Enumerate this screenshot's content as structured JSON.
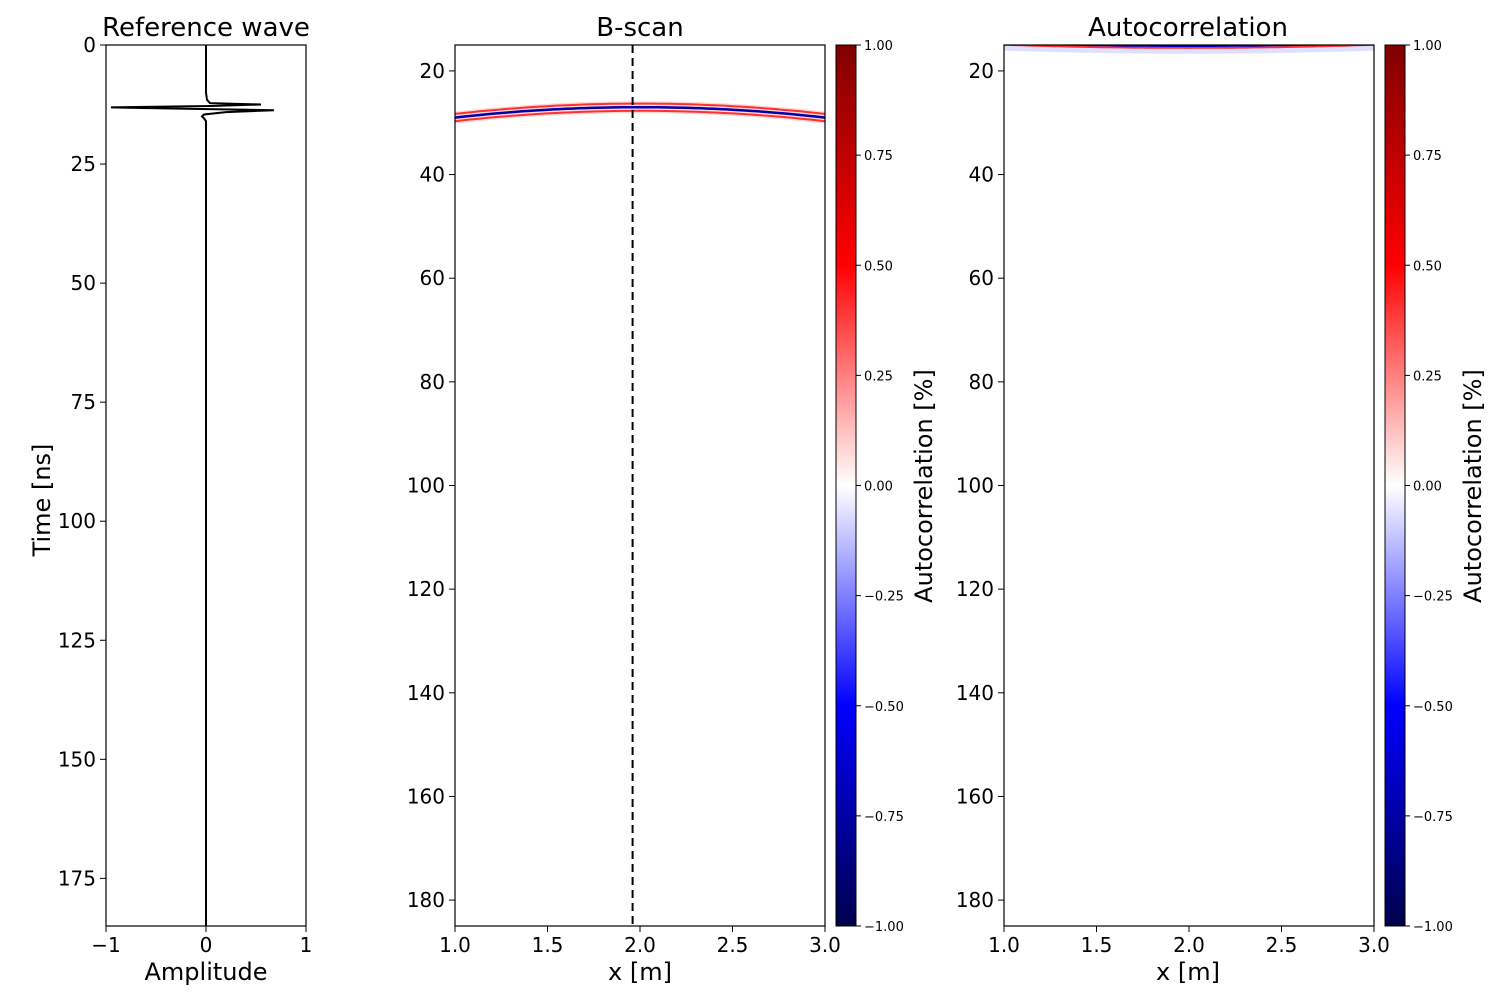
{
  "chart_data": [
    {
      "id": "reference-wave",
      "type": "line",
      "title": "Reference wave",
      "xlabel": "Amplitude",
      "ylabel": "Time [ns]",
      "xlim": [
        -1,
        1
      ],
      "ylim": [
        185,
        0
      ],
      "x_ticks": [
        -1,
        0,
        1
      ],
      "y_ticks": [
        0,
        25,
        50,
        75,
        100,
        125,
        150,
        175
      ],
      "line_color": "#000000",
      "series": [
        {
          "x": [
            0,
            0,
            0.01,
            0.04,
            0.55,
            0.05,
            -0.95,
            -0.2,
            0.68,
            0.2,
            -0.02,
            -0.04,
            -0.02,
            0,
            0,
            0
          ],
          "y": [
            0,
            10,
            11.5,
            12.2,
            12.5,
            12.8,
            13.1,
            13.4,
            13.7,
            14.1,
            14.6,
            15.0,
            15.4,
            16.0,
            50,
            185
          ]
        }
      ]
    },
    {
      "id": "b-scan",
      "type": "heatmap",
      "title": "B-scan",
      "xlabel": "x [m]",
      "ylabel": "",
      "xlim": [
        1.0,
        3.0
      ],
      "ylim": [
        185,
        15
      ],
      "x_ticks": [
        1.0,
        1.5,
        2.0,
        2.5,
        3.0
      ],
      "y_ticks": [
        20,
        40,
        60,
        80,
        100,
        120,
        140,
        160,
        180
      ],
      "hyperbola": {
        "apex_x": 2.0,
        "apex_t": 27.0,
        "edge_t": 29.0
      },
      "marker_x": 1.96,
      "colorbar": {
        "label": "Autocorrelation [%]",
        "min": -1.0,
        "max": 1.0,
        "ticks": [
          1.0,
          0.75,
          0.5,
          0.25,
          0.0,
          -0.25,
          -0.5,
          -0.75,
          -1.0
        ]
      }
    },
    {
      "id": "autocorrelation",
      "type": "heatmap",
      "title": "Autocorrelation",
      "xlabel": "x [m]",
      "ylabel": "",
      "xlim": [
        1.0,
        3.0
      ],
      "ylim": [
        185,
        15
      ],
      "x_ticks": [
        1.0,
        1.5,
        2.0,
        2.5,
        3.0
      ],
      "y_ticks": [
        20,
        40,
        60,
        80,
        100,
        120,
        140,
        160,
        180
      ],
      "hyperbola": {
        "apex_x": 2.0,
        "apex_t": 15.3,
        "edge_t": 14.7
      },
      "colorbar": {
        "label": "Autocorrelation [%]",
        "min": -1.0,
        "max": 1.0,
        "ticks": [
          1.0,
          0.75,
          0.5,
          0.25,
          0.0,
          -0.25,
          -0.5,
          -0.75,
          -1.0
        ]
      }
    }
  ],
  "colors": {
    "positive": "#ff0000",
    "negative": "#0000ff",
    "dark_positive": "#800000",
    "dark_negative": "#000040"
  }
}
